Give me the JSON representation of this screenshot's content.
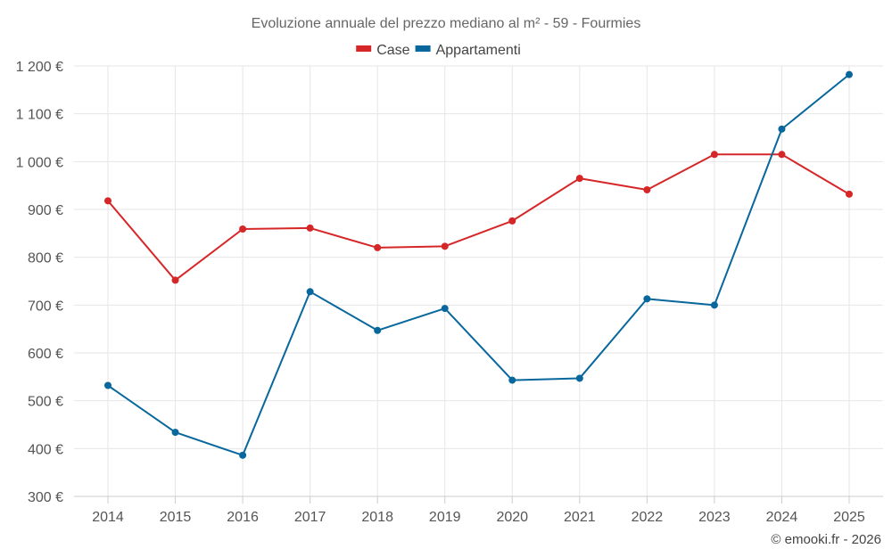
{
  "chart_data": {
    "type": "line",
    "title": "Evoluzione annuale del prezzo mediano al m² - 59 - Fourmies",
    "xlabel": "",
    "ylabel": "",
    "categories": [
      "2014",
      "2015",
      "2016",
      "2017",
      "2018",
      "2019",
      "2020",
      "2021",
      "2022",
      "2023",
      "2024",
      "2025"
    ],
    "ylim": [
      300,
      1200
    ],
    "yticks": [
      300,
      400,
      500,
      600,
      700,
      800,
      900,
      1000,
      1100,
      1200
    ],
    "ytick_labels": [
      "300 €",
      "400 €",
      "500 €",
      "600 €",
      "700 €",
      "800 €",
      "900 €",
      "1 000 €",
      "1 100 €",
      "1 200 €"
    ],
    "grid": true,
    "legend_position": "top-center",
    "series": [
      {
        "name": "Case",
        "color": "#d62728",
        "values": [
          918,
          752,
          859,
          861,
          820,
          823,
          876,
          965,
          941,
          1015,
          1015,
          932
        ]
      },
      {
        "name": "Appartamenti",
        "color": "#08679c",
        "values": [
          532,
          434,
          386,
          728,
          647,
          693,
          543,
          547,
          713,
          700,
          1068,
          1182
        ]
      }
    ],
    "credit": "© emooki.fr - 2026"
  }
}
